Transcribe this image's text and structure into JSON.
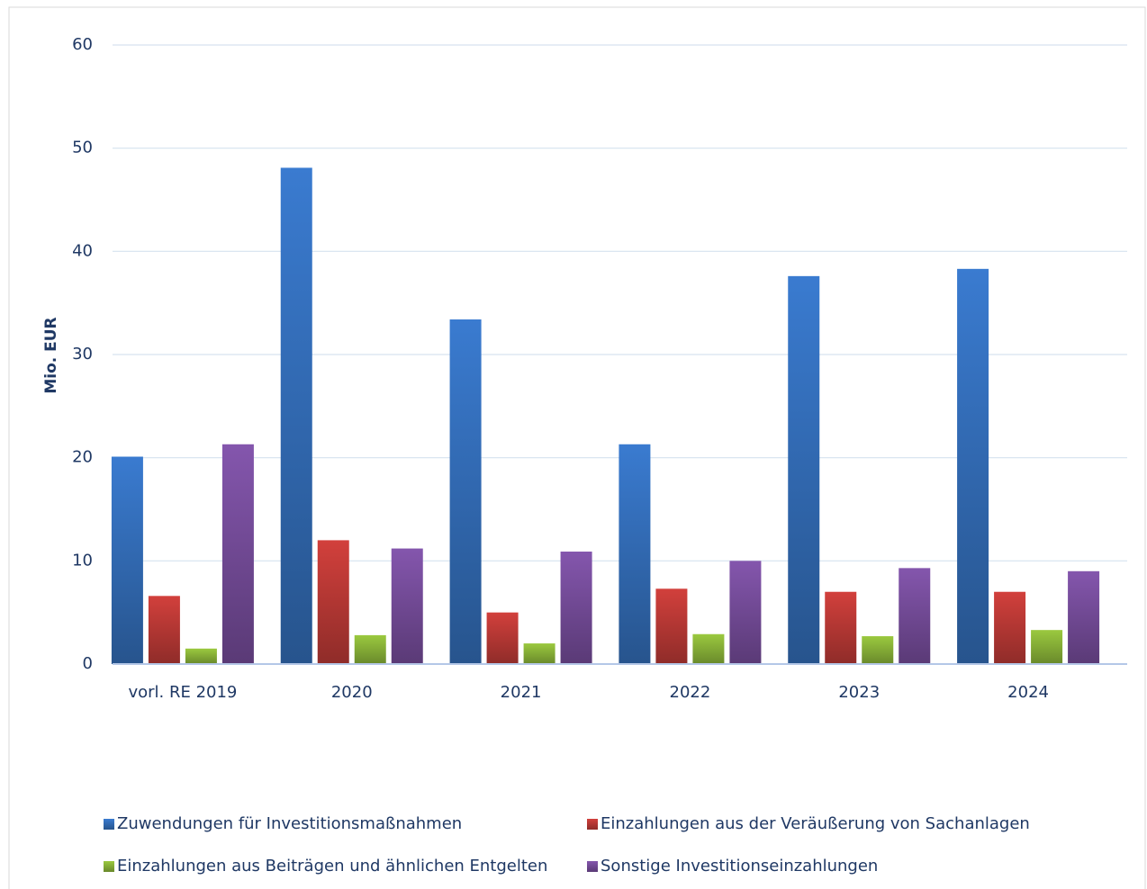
{
  "chart_data": {
    "type": "bar",
    "ylabel": "Mio. EUR",
    "categories": [
      "vorl. RE 2019",
      "2020",
      "2021",
      "2022",
      "2023",
      "2024"
    ],
    "series": [
      {
        "name": "Zuwendungen für Investitionsmaßnahmen",
        "color": "#3a7bd0",
        "values": [
          20.1,
          48.1,
          33.4,
          21.3,
          37.6,
          38.3
        ]
      },
      {
        "name": "Einzahlungen aus der Veräußerung von Sachanlagen",
        "color": "#d2403c",
        "values": [
          6.6,
          12.0,
          5.0,
          7.3,
          7.0,
          7.0
        ]
      },
      {
        "name": "Einzahlungen aus Beiträgen und ähnlichen Entgelten",
        "color": "#9bc93f",
        "values": [
          1.5,
          2.8,
          2.0,
          2.9,
          2.7,
          3.3
        ]
      },
      {
        "name": "Sonstige Investitionseinzahlungen",
        "color": "#8456ad",
        "values": [
          21.3,
          11.2,
          10.9,
          10.0,
          9.3,
          9.0
        ]
      }
    ],
    "ylim": [
      0,
      60
    ],
    "yticks": [
      0,
      10,
      20,
      30,
      40,
      50,
      60
    ],
    "grid": true,
    "legend": "bottom"
  }
}
